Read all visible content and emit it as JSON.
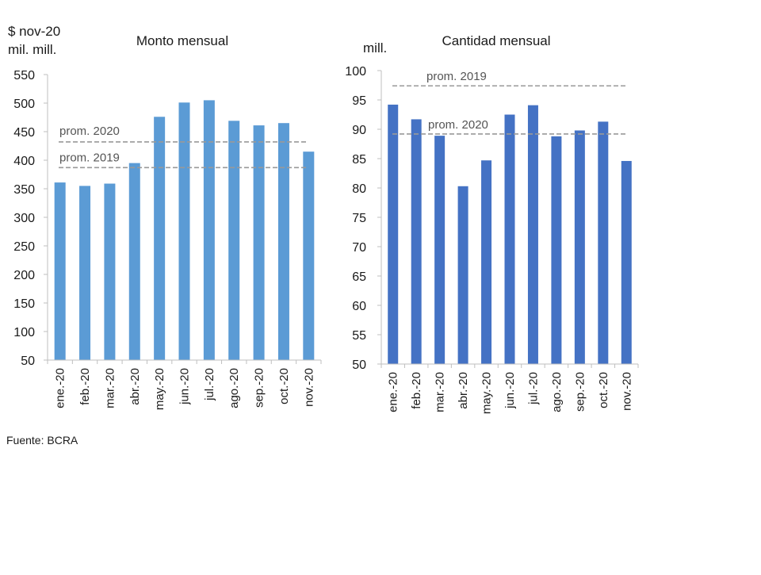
{
  "source": "Fuente: BCRA",
  "chart_data": [
    {
      "type": "bar",
      "title": "Monto mensual",
      "unit_line1": "$ nov-20",
      "unit_line2": "mil. mill.",
      "categories": [
        "ene.-20",
        "feb.-20",
        "mar.-20",
        "abr.-20",
        "may.-20",
        "jun.-20",
        "jul.-20",
        "ago.-20",
        "sep.-20",
        "oct.-20",
        "nov.-20"
      ],
      "values": [
        361,
        355,
        359,
        395,
        476,
        501,
        505,
        469,
        461,
        465,
        415
      ],
      "ylim": [
        50,
        550
      ],
      "yticks": [
        50,
        100,
        150,
        200,
        250,
        300,
        350,
        400,
        450,
        500,
        550
      ],
      "bar_color": "#5b9bd5",
      "reference_lines": [
        {
          "label": "prom. 2020",
          "value": 432
        },
        {
          "label": "prom. 2019",
          "value": 387
        }
      ],
      "xlabel": "",
      "ylabel": ""
    },
    {
      "type": "bar",
      "title": "Cantidad mensual",
      "unit_line1": "mill.",
      "categories": [
        "ene.-20",
        "feb.-20",
        "mar.-20",
        "abr.-20",
        "may.-20",
        "jun.-20",
        "jul.-20",
        "ago.-20",
        "sep.-20",
        "oct.-20",
        "nov.-20"
      ],
      "values": [
        94.2,
        91.7,
        88.9,
        80.3,
        84.7,
        92.5,
        94.1,
        88.8,
        89.8,
        91.3,
        84.6
      ],
      "ylim": [
        50,
        100
      ],
      "yticks": [
        50,
        55,
        60,
        65,
        70,
        75,
        80,
        85,
        90,
        95,
        100
      ],
      "bar_color": "#4472c4",
      "reference_lines": [
        {
          "label": "prom. 2019",
          "value": 97.4
        },
        {
          "label": "prom. 2020",
          "value": 89.2
        }
      ],
      "xlabel": "",
      "ylabel": ""
    }
  ]
}
